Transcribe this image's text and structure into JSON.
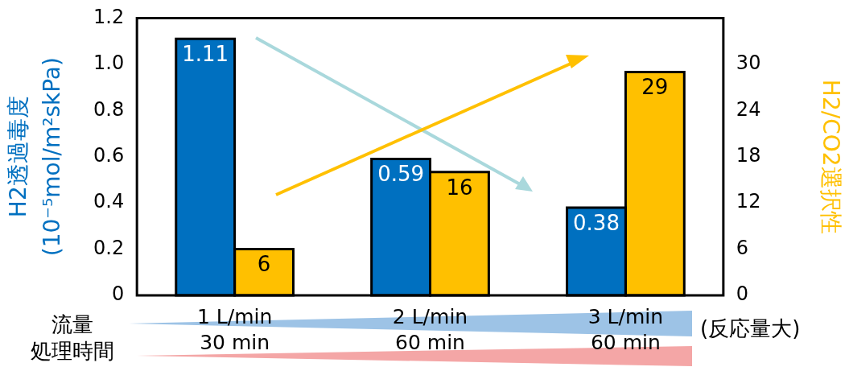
{
  "chart_data": {
    "type": "bar",
    "categories": [
      "1 L/min\n30 min",
      "2 L/min\n60 min",
      "3 L/min\n60 min"
    ],
    "ylabel": "H2透過毒度\n(10⁻⁵mol/m²skPa)",
    "y2label": "H2/CO2選択性",
    "series": [
      {
        "color": "#0070c0",
        "values": [
          1.11,
          0.59,
          0.38
        ]
      },
      {
        "color": "#ffc000",
        "values": [
          6,
          16,
          29
        ],
        "axis": "y2"
      }
    ],
    "ylim": [
      0,
      1.2
    ],
    "yticks": [
      0,
      0.2,
      0.4,
      0.6,
      0.8,
      {
        "value": 1,
        "label": "1.0"
      },
      1.2
    ],
    "y2lim": [
      0,
      36
    ],
    "y2ticks": [
      0,
      6,
      12,
      18,
      24,
      30
    ],
    "data_labels": true,
    "grid": false,
    "legend": false,
    "annotations": [
      "流量",
      "処理時間",
      "(反応量大)"
    ]
  }
}
